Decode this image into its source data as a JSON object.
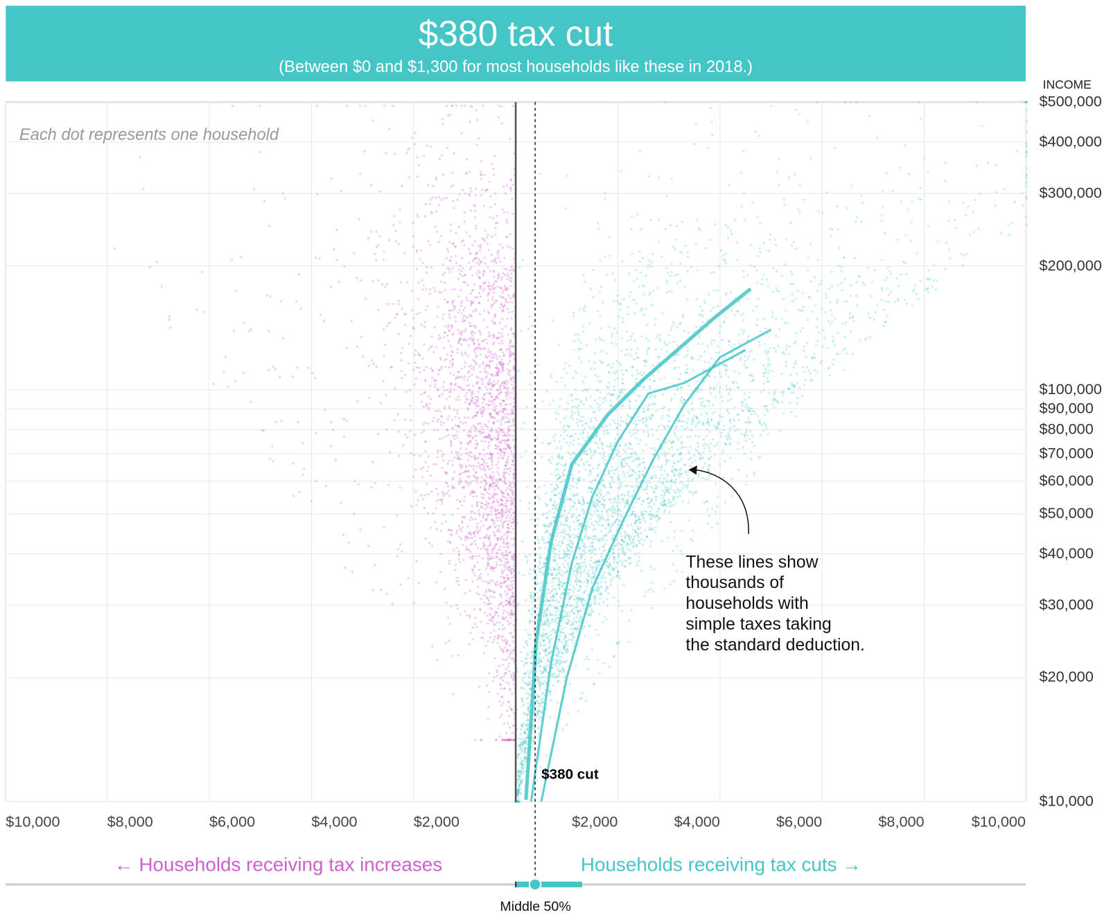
{
  "header": {
    "title": "$380 tax cut",
    "subtitle": "(Between $0 and $1,300 for most households like these in 2018.)"
  },
  "colors": {
    "header_bg": "#45c5c6",
    "tax_cut": "#45c5c6",
    "tax_increase": "#cf5fcf",
    "zero_line": "#555555"
  },
  "chart_data": {
    "type": "scatter",
    "note": "Each dot represents one household",
    "x_axis": {
      "range": [
        -10000,
        10000
      ],
      "tick_values": [
        -10000,
        -8000,
        -6000,
        -4000,
        -2000,
        2000,
        4000,
        6000,
        8000,
        10000
      ],
      "tick_labels": [
        "$10,000",
        "$8,000",
        "$6,000",
        "$4,000",
        "$2,000",
        "$2,000",
        "$4,000",
        "$6,000",
        "$8,000",
        "$10,000"
      ],
      "grid": true
    },
    "y_axis": {
      "label": "INCOME",
      "scale": "log",
      "range": [
        10000,
        500000
      ],
      "tick_values": [
        500000,
        400000,
        300000,
        200000,
        100000,
        90000,
        80000,
        70000,
        60000,
        50000,
        40000,
        30000,
        20000,
        10000
      ],
      "tick_labels": [
        "$500,000",
        "$400,000",
        "$300,000",
        "$200,000",
        "$100,000",
        "$90,000",
        "$80,000",
        "$70,000",
        "$60,000",
        "$50,000",
        "$40,000",
        "$30,000",
        "$20,000",
        "$10,000"
      ],
      "grid": true
    },
    "median_cut": 380,
    "median_label": "$380 cut",
    "middle_50_range": [
      0,
      1300
    ],
    "middle_50_label": "Middle 50%",
    "left_label": "← Households receiving tax increases",
    "right_label": "Households receiving tax cuts →",
    "annotation": "These lines show\nthousands of\nhouseholds with\nsimple taxes taking\nthe standard deduction.",
    "standard_deduction_lines": [
      {
        "points": [
          [
            200,
            10100
          ],
          [
            400,
            24400
          ],
          [
            690,
            42600
          ],
          [
            1100,
            66000
          ],
          [
            1800,
            87000
          ],
          [
            2500,
            106000
          ],
          [
            3900,
            150000
          ],
          [
            4600,
            176000
          ]
        ]
      },
      {
        "points": [
          [
            300,
            10000
          ],
          [
            700,
            22000
          ],
          [
            1100,
            38000
          ],
          [
            1500,
            55000
          ],
          [
            2000,
            75000
          ],
          [
            2600,
            98000
          ],
          [
            3300,
            104000
          ],
          [
            4500,
            125000
          ]
        ]
      },
      {
        "points": [
          [
            500,
            10000
          ],
          [
            1000,
            20000
          ],
          [
            1500,
            33000
          ],
          [
            2100,
            48000
          ],
          [
            2700,
            68000
          ],
          [
            3300,
            92000
          ],
          [
            4000,
            120000
          ],
          [
            5000,
            140000
          ]
        ]
      }
    ]
  },
  "ui": {
    "income_label": "INCOME"
  }
}
